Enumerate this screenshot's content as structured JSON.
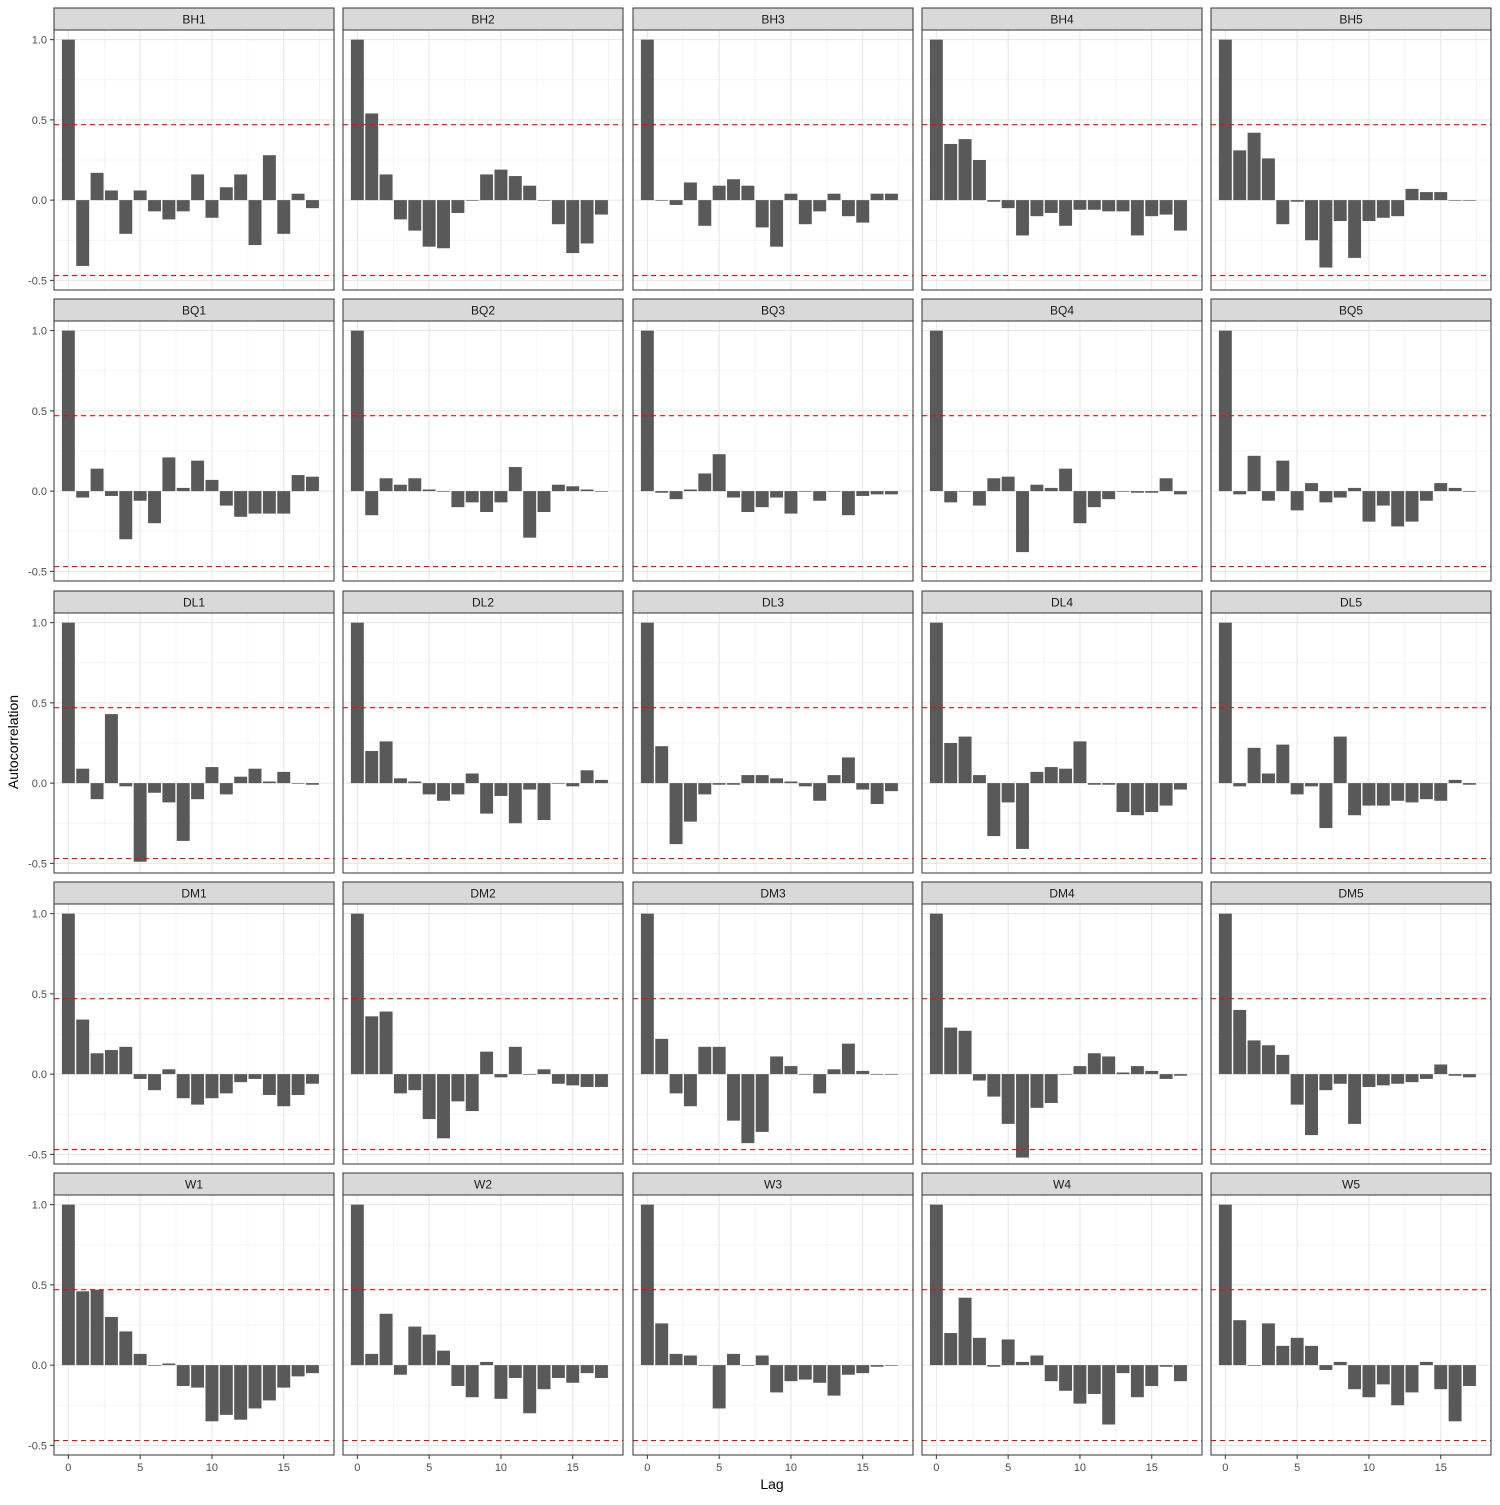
{
  "chart_data": {
    "type": "bar",
    "xlabel": "Lag",
    "ylabel": "Autocorrelation",
    "xlim": [
      -1,
      18.5
    ],
    "ylim": [
      -0.56,
      1.06
    ],
    "x_ticks": [
      0,
      5,
      10,
      15
    ],
    "x_tick_labels": [
      "0",
      "5",
      "10",
      "15"
    ],
    "y_ticks": [
      -0.5,
      0.0,
      0.5,
      1.0
    ],
    "y_tick_labels": [
      "-0.5",
      "0.0",
      "0.5",
      "1.0"
    ],
    "grid": true,
    "bar_color": "#595959",
    "threshold_color": "#ff0000",
    "confidence_bounds": [
      0.47,
      -0.47
    ],
    "lags": [
      0,
      1,
      2,
      3,
      4,
      5,
      6,
      7,
      8,
      9,
      10,
      11,
      12,
      13,
      14,
      15,
      16,
      17
    ],
    "panels": [
      {
        "name": "BH1",
        "values": [
          1.0,
          -0.41,
          0.17,
          0.06,
          -0.21,
          0.06,
          -0.07,
          -0.12,
          -0.07,
          0.16,
          -0.11,
          0.08,
          0.16,
          -0.28,
          0.28,
          -0.21,
          0.04,
          -0.05
        ]
      },
      {
        "name": "BH2",
        "values": [
          1.0,
          0.54,
          0.16,
          -0.12,
          -0.19,
          -0.29,
          -0.3,
          -0.08,
          0.0,
          0.16,
          0.19,
          0.15,
          0.09,
          0.0,
          -0.15,
          -0.33,
          -0.27,
          -0.09
        ]
      },
      {
        "name": "BH3",
        "values": [
          1.0,
          0.0,
          -0.03,
          0.11,
          -0.16,
          0.09,
          0.13,
          0.09,
          -0.17,
          -0.29,
          0.04,
          -0.15,
          -0.07,
          0.04,
          -0.1,
          -0.14,
          0.04,
          0.04
        ]
      },
      {
        "name": "BH4",
        "values": [
          1.0,
          0.35,
          0.38,
          0.25,
          -0.01,
          -0.05,
          -0.22,
          -0.1,
          -0.08,
          -0.16,
          -0.06,
          -0.06,
          -0.07,
          -0.07,
          -0.22,
          -0.1,
          -0.09,
          -0.19
        ]
      },
      {
        "name": "BH5",
        "values": [
          1.0,
          0.31,
          0.42,
          0.26,
          -0.15,
          -0.01,
          -0.25,
          -0.42,
          -0.13,
          -0.36,
          -0.13,
          -0.11,
          -0.1,
          0.07,
          0.05,
          0.05,
          0.0,
          0.0
        ]
      },
      {
        "name": "BQ1",
        "values": [
          1.0,
          -0.04,
          0.14,
          -0.03,
          -0.3,
          -0.06,
          -0.2,
          0.21,
          0.02,
          0.19,
          0.07,
          -0.09,
          -0.16,
          -0.14,
          -0.14,
          -0.14,
          0.1,
          0.09
        ]
      },
      {
        "name": "BQ2",
        "values": [
          1.0,
          -0.15,
          0.08,
          0.04,
          0.08,
          0.01,
          0.0,
          -0.1,
          -0.07,
          -0.13,
          -0.07,
          0.15,
          -0.29,
          -0.13,
          0.04,
          0.03,
          0.01,
          0.0
        ]
      },
      {
        "name": "BQ3",
        "values": [
          1.0,
          -0.01,
          -0.05,
          0.01,
          0.11,
          0.23,
          -0.04,
          -0.13,
          -0.1,
          -0.04,
          -0.14,
          0.0,
          -0.06,
          0.0,
          -0.15,
          -0.03,
          -0.02,
          -0.02
        ]
      },
      {
        "name": "BQ4",
        "values": [
          1.0,
          -0.07,
          0.0,
          -0.09,
          0.08,
          0.09,
          -0.38,
          0.04,
          0.02,
          0.14,
          -0.2,
          -0.1,
          -0.05,
          0.0,
          -0.01,
          -0.01,
          0.08,
          -0.02
        ]
      },
      {
        "name": "BQ5",
        "values": [
          1.0,
          -0.02,
          0.22,
          -0.06,
          0.19,
          -0.12,
          0.05,
          -0.07,
          -0.04,
          0.02,
          -0.19,
          -0.09,
          -0.22,
          -0.19,
          -0.06,
          0.05,
          0.02,
          0.0
        ]
      },
      {
        "name": "DL1",
        "values": [
          1.0,
          0.09,
          -0.1,
          0.43,
          -0.02,
          -0.49,
          -0.06,
          -0.12,
          -0.36,
          -0.1,
          0.1,
          -0.07,
          0.04,
          0.09,
          0.01,
          0.07,
          0.0,
          -0.01
        ]
      },
      {
        "name": "DL2",
        "values": [
          1.0,
          0.2,
          0.26,
          0.03,
          0.01,
          -0.07,
          -0.11,
          -0.07,
          0.06,
          -0.19,
          -0.08,
          -0.25,
          -0.04,
          -0.23,
          0.0,
          -0.02,
          0.08,
          0.02
        ]
      },
      {
        "name": "DL3",
        "values": [
          1.0,
          0.23,
          -0.38,
          -0.24,
          -0.07,
          -0.01,
          -0.01,
          0.05,
          0.05,
          0.03,
          0.01,
          -0.02,
          -0.11,
          0.05,
          0.16,
          -0.04,
          -0.13,
          -0.05
        ]
      },
      {
        "name": "DL4",
        "values": [
          1.0,
          0.25,
          0.29,
          0.05,
          -0.33,
          -0.12,
          -0.41,
          0.07,
          0.1,
          0.09,
          0.26,
          -0.01,
          -0.01,
          -0.18,
          -0.2,
          -0.18,
          -0.14,
          -0.04
        ]
      },
      {
        "name": "DL5",
        "values": [
          1.0,
          -0.02,
          0.22,
          0.06,
          0.24,
          -0.07,
          -0.02,
          -0.28,
          0.29,
          -0.2,
          -0.14,
          -0.14,
          -0.11,
          -0.12,
          -0.1,
          -0.11,
          0.02,
          -0.01
        ]
      },
      {
        "name": "DM1",
        "values": [
          1.0,
          0.34,
          0.13,
          0.15,
          0.17,
          -0.03,
          -0.1,
          0.03,
          -0.15,
          -0.19,
          -0.15,
          -0.12,
          -0.05,
          -0.03,
          -0.13,
          -0.2,
          -0.13,
          -0.06
        ]
      },
      {
        "name": "DM2",
        "values": [
          1.0,
          0.36,
          0.39,
          -0.12,
          -0.1,
          -0.28,
          -0.4,
          -0.17,
          -0.23,
          0.14,
          -0.02,
          0.17,
          0.0,
          0.03,
          -0.06,
          -0.07,
          -0.08,
          -0.08
        ]
      },
      {
        "name": "DM3",
        "values": [
          1.0,
          0.22,
          -0.12,
          -0.2,
          0.17,
          0.17,
          -0.29,
          -0.43,
          -0.36,
          0.11,
          0.05,
          0.0,
          -0.12,
          0.03,
          0.19,
          0.02,
          0.0,
          0.0
        ]
      },
      {
        "name": "DM4",
        "values": [
          1.0,
          0.29,
          0.27,
          -0.04,
          -0.14,
          -0.31,
          -0.52,
          -0.21,
          -0.18,
          0.0,
          0.05,
          0.13,
          0.11,
          0.01,
          0.05,
          0.02,
          -0.03,
          -0.01
        ]
      },
      {
        "name": "DM5",
        "values": [
          1.0,
          0.4,
          0.21,
          0.18,
          0.12,
          -0.19,
          -0.38,
          -0.1,
          -0.06,
          -0.31,
          -0.08,
          -0.07,
          -0.06,
          -0.05,
          -0.03,
          0.06,
          -0.01,
          -0.02
        ]
      },
      {
        "name": "W1",
        "values": [
          1.0,
          0.46,
          0.47,
          0.3,
          0.21,
          0.07,
          0.0,
          0.01,
          -0.13,
          -0.14,
          -0.35,
          -0.31,
          -0.34,
          -0.27,
          -0.22,
          -0.14,
          -0.07,
          -0.05
        ]
      },
      {
        "name": "W2",
        "values": [
          1.0,
          0.07,
          0.32,
          -0.06,
          0.24,
          0.19,
          0.09,
          -0.13,
          -0.2,
          0.02,
          -0.21,
          -0.08,
          -0.3,
          -0.15,
          -0.08,
          -0.11,
          -0.05,
          -0.08
        ]
      },
      {
        "name": "W3",
        "values": [
          1.0,
          0.26,
          0.07,
          0.06,
          0.0,
          -0.27,
          0.07,
          0.0,
          0.06,
          -0.17,
          -0.1,
          -0.09,
          -0.11,
          -0.19,
          -0.06,
          -0.05,
          -0.01,
          0.0
        ]
      },
      {
        "name": "W4",
        "values": [
          1.0,
          0.2,
          0.42,
          0.17,
          -0.01,
          0.16,
          0.02,
          0.06,
          -0.1,
          -0.16,
          -0.24,
          -0.18,
          -0.37,
          -0.05,
          -0.2,
          -0.13,
          -0.01,
          -0.1
        ]
      },
      {
        "name": "W5",
        "values": [
          1.0,
          0.28,
          0.0,
          0.26,
          0.12,
          0.17,
          0.12,
          -0.03,
          0.02,
          -0.15,
          -0.2,
          -0.12,
          -0.25,
          -0.17,
          0.02,
          -0.15,
          -0.35,
          -0.13
        ]
      }
    ]
  }
}
